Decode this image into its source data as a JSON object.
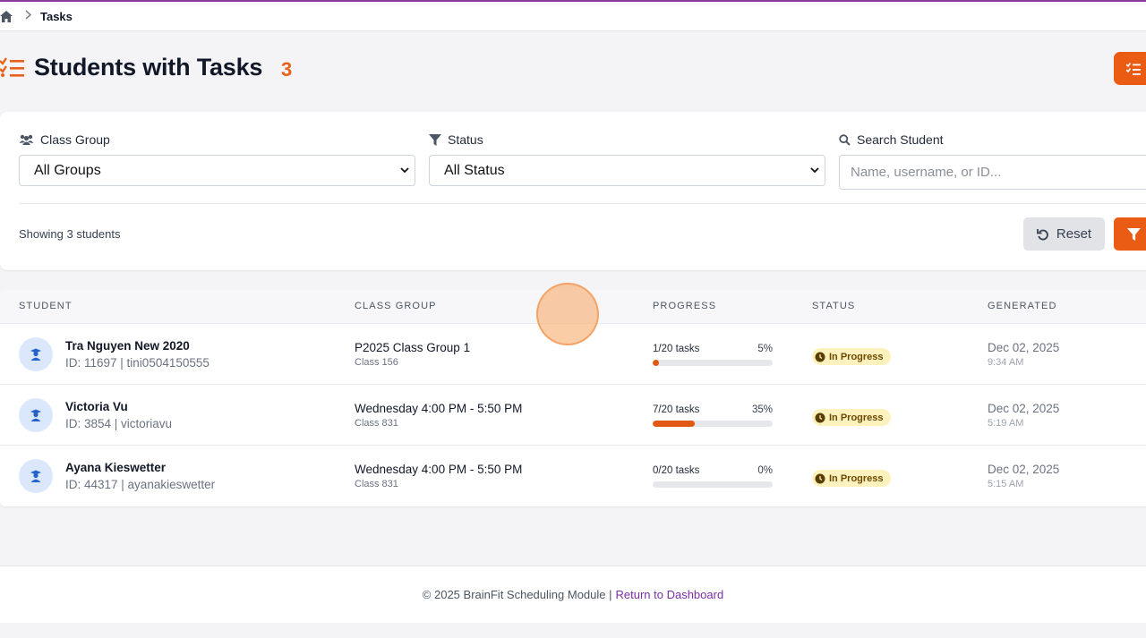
{
  "breadcrumb": {
    "home_icon": "home-icon",
    "current": "Tasks"
  },
  "header": {
    "title": "Students with Tasks",
    "count": "3",
    "title_icon": "tasks-list-icon",
    "action_icon": "tasks-list-icon"
  },
  "filters": {
    "class_group": {
      "label": "Class Group",
      "icon": "users-icon",
      "value": "All Groups"
    },
    "status": {
      "label": "Status",
      "icon": "filter-icon",
      "value": "All Status"
    },
    "search": {
      "label": "Search Student",
      "icon": "search-icon",
      "placeholder": "Name, username, or ID..."
    },
    "showing": "Showing 3 students",
    "reset_label": "Reset"
  },
  "table": {
    "headers": {
      "student": "STUDENT",
      "class_group": "CLASS GROUP",
      "progress": "PROGRESS",
      "status": "STATUS",
      "generated": "GENERATED"
    },
    "rows": [
      {
        "name": "Tra Nguyen New 2020",
        "meta": "ID: 11697 | tini0504150555",
        "group": "P2025 Class Group 1",
        "class": "Class 156",
        "tasks": "1/20 tasks",
        "pct": "5%",
        "progress": 5,
        "status": "In Progress",
        "date": "Dec 02, 2025",
        "time": "9:34 AM"
      },
      {
        "name": "Victoria Vu",
        "meta": "ID: 3854 | victoriavu",
        "group": "Wednesday 4:00 PM - 5:50 PM",
        "class": "Class 831",
        "tasks": "7/20 tasks",
        "pct": "35%",
        "progress": 35,
        "status": "In Progress",
        "date": "Dec 02, 2025",
        "time": "5:19 AM"
      },
      {
        "name": "Ayana Kieswetter",
        "meta": "ID: 44317 | ayanakieswetter",
        "group": "Wednesday 4:00 PM - 5:50 PM",
        "class": "Class 831",
        "tasks": "0/20 tasks",
        "pct": "0%",
        "progress": 0,
        "status": "In Progress",
        "date": "Dec 02, 2025",
        "time": "5:15 AM"
      }
    ]
  },
  "footer": {
    "text": "© 2025 BrainFit Scheduling Module |",
    "link": "Return to Dashboard"
  },
  "colors": {
    "accent": "#ea5b14",
    "badge_bg": "#fdf1be",
    "link": "#7b2fa3"
  }
}
